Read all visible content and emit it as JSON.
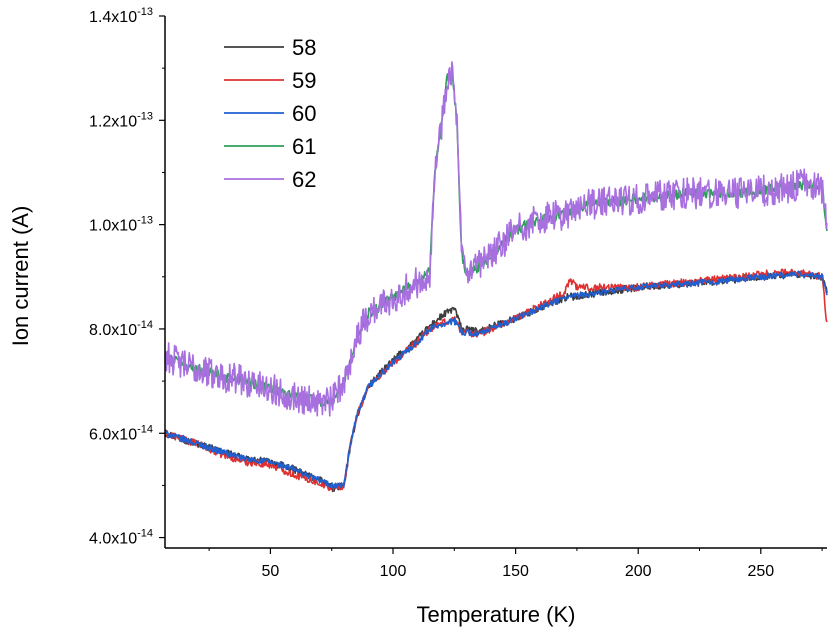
{
  "chart_data": {
    "type": "line",
    "xlabel": "Temperature (K)",
    "ylabel": "Ion current (A)",
    "xlim": [
      7,
      277
    ],
    "ylim": [
      3.8e-14,
      1.4e-13
    ],
    "x_ticks": [
      50,
      100,
      150,
      200,
      250
    ],
    "x_tick_labels": [
      "50",
      "100",
      "150",
      "200",
      "250"
    ],
    "y_ticks": [
      4e-14,
      6e-14,
      8e-14,
      1e-13,
      1.2e-13,
      1.4e-13
    ],
    "y_tick_labels": [
      {
        "mant": "4.0x10",
        "exp": "-14"
      },
      {
        "mant": "6.0x10",
        "exp": "-14"
      },
      {
        "mant": "8.0x10",
        "exp": "-14"
      },
      {
        "mant": "1.0x10",
        "exp": "-13"
      },
      {
        "mant": "1.2x10",
        "exp": "-13"
      },
      {
        "mant": "1.4x10",
        "exp": "-13"
      }
    ],
    "legend_position": "top-left",
    "noise": {
      "58": 7e-16,
      "59": 7e-16,
      "60": 6e-16,
      "61": 1e-15,
      "62": 3e-15
    },
    "series": [
      {
        "name": "58",
        "color": "#3d3d3d",
        "x": [
          7,
          20,
          30,
          40,
          50,
          60,
          70,
          75,
          80,
          82,
          85,
          90,
          100,
          110,
          115,
          120,
          125,
          128,
          135,
          150,
          170,
          200,
          230,
          250,
          265,
          275,
          277
        ],
        "y": [
          6e-14,
          5.8e-14,
          5.65e-14,
          5.5e-14,
          5.45e-14,
          5.3e-14,
          5.1e-14,
          4.95e-14,
          5e-14,
          5.6e-14,
          6.3e-14,
          6.9e-14,
          7.4e-14,
          7.8e-14,
          8.05e-14,
          8.25e-14,
          8.4e-14,
          8e-14,
          7.95e-14,
          8.2e-14,
          8.6e-14,
          8.8e-14,
          8.9e-14,
          9e-14,
          9.05e-14,
          9e-14,
          8.7e-14
        ]
      },
      {
        "name": "59",
        "color": "#e03030",
        "x": [
          7,
          20,
          30,
          40,
          50,
          60,
          70,
          75,
          80,
          82,
          85,
          90,
          100,
          110,
          115,
          120,
          125,
          128,
          135,
          150,
          170,
          172,
          175,
          200,
          230,
          250,
          265,
          275,
          277
        ],
        "y": [
          6e-14,
          5.8e-14,
          5.6e-14,
          5.45e-14,
          5.4e-14,
          5.2e-14,
          5.05e-14,
          4.95e-14,
          5e-14,
          5.6e-14,
          6.3e-14,
          6.9e-14,
          7.35e-14,
          7.75e-14,
          8e-14,
          8.1e-14,
          8.2e-14,
          7.95e-14,
          7.9e-14,
          8.2e-14,
          8.7e-14,
          8.95e-14,
          8.8e-14,
          8.8e-14,
          8.95e-14,
          9.05e-14,
          9.1e-14,
          9e-14,
          8.1e-14
        ]
      },
      {
        "name": "60",
        "color": "#1f5fd0",
        "x": [
          7,
          20,
          30,
          40,
          50,
          60,
          70,
          75,
          80,
          82,
          85,
          90,
          100,
          110,
          115,
          120,
          125,
          128,
          135,
          150,
          170,
          200,
          230,
          250,
          265,
          275,
          277
        ],
        "y": [
          6e-14,
          5.8e-14,
          5.65e-14,
          5.5e-14,
          5.45e-14,
          5.3e-14,
          5.1e-14,
          5e-14,
          5e-14,
          5.6e-14,
          6.3e-14,
          6.9e-14,
          7.35e-14,
          7.75e-14,
          8e-14,
          8.1e-14,
          8.15e-14,
          7.95e-14,
          7.9e-14,
          8.2e-14,
          8.6e-14,
          8.8e-14,
          8.9e-14,
          9e-14,
          9.05e-14,
          9e-14,
          8.7e-14
        ]
      },
      {
        "name": "61",
        "color": "#2e9e5a",
        "x": [
          7,
          15,
          30,
          40,
          50,
          60,
          70,
          75,
          80,
          85,
          90,
          100,
          110,
          115,
          117,
          120,
          122,
          124,
          126,
          128,
          130,
          140,
          150,
          160,
          170,
          180,
          200,
          220,
          240,
          260,
          270,
          275,
          277
        ],
        "y": [
          7.5e-14,
          7.3e-14,
          7.1e-14,
          7e-14,
          6.85e-14,
          6.7e-14,
          6.6e-14,
          6.6e-14,
          7e-14,
          7.8e-14,
          8.3e-14,
          8.6e-14,
          8.9e-14,
          9.1e-14,
          1.1e-13,
          1.2e-13,
          1.28e-13,
          1.29e-13,
          1.2e-13,
          9.4e-14,
          9e-14,
          9.4e-14,
          9.9e-14,
          1.01e-13,
          1.02e-13,
          1.04e-13,
          1.05e-13,
          1.06e-13,
          1.06e-13,
          1.07e-13,
          1.08e-13,
          1.07e-13,
          9.9e-14
        ]
      },
      {
        "name": "62",
        "color": "#a86fdf",
        "x": [
          7,
          15,
          30,
          40,
          50,
          60,
          70,
          75,
          80,
          85,
          90,
          100,
          110,
          115,
          117,
          120,
          122,
          124,
          126,
          128,
          130,
          140,
          150,
          160,
          170,
          180,
          200,
          220,
          240,
          260,
          270,
          275,
          277
        ],
        "y": [
          7.5e-14,
          7.3e-14,
          7.1e-14,
          7e-14,
          6.85e-14,
          6.7e-14,
          6.6e-14,
          6.6e-14,
          7e-14,
          7.8e-14,
          8.3e-14,
          8.6e-14,
          8.9e-14,
          9.1e-14,
          1.1e-13,
          1.2e-13,
          1.28e-13,
          1.3e-13,
          1.2e-13,
          9.4e-14,
          9e-14,
          9.4e-14,
          9.9e-14,
          1.01e-13,
          1.02e-13,
          1.04e-13,
          1.05e-13,
          1.06e-13,
          1.06e-13,
          1.07e-13,
          1.08e-13,
          1.07e-13,
          9.9e-14
        ]
      }
    ]
  }
}
